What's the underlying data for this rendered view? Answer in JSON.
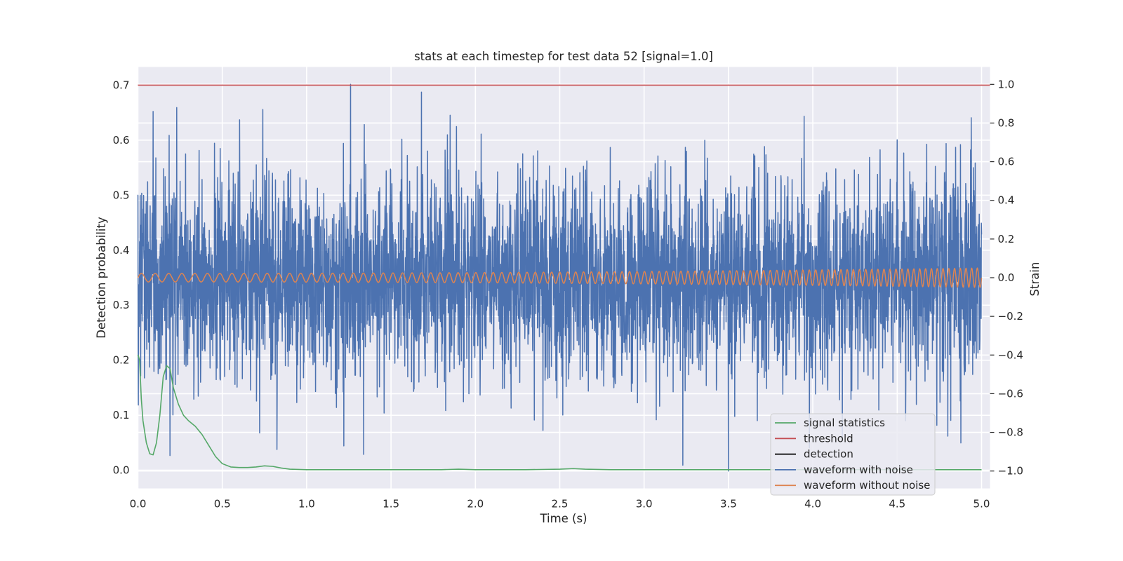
{
  "chart_data": {
    "type": "line",
    "title": "stats at each timestep for test data 52 [signal=1.0]",
    "xlabel": "Time (s)",
    "ylabel": "Detection probability",
    "ylabel_right": "Strain",
    "xlim": [
      0.0,
      5.05
    ],
    "ylim": [
      -0.033,
      0.733
    ],
    "ylim_right": [
      -1.09,
      1.09
    ],
    "x_ticks": [
      "0.0",
      "0.5",
      "1.0",
      "1.5",
      "2.0",
      "2.5",
      "3.0",
      "3.5",
      "4.0",
      "4.5",
      "5.0"
    ],
    "y_ticks": [
      "0.0",
      "0.1",
      "0.2",
      "0.3",
      "0.4",
      "0.5",
      "0.6",
      "0.7"
    ],
    "y_ticks_right": [
      "−1.0",
      "−0.8",
      "−0.6",
      "−0.4",
      "−0.2",
      "0.0",
      "0.2",
      "0.4",
      "0.6",
      "0.8",
      "1.0"
    ],
    "grid": true,
    "background": "#eaeaf2",
    "legend_position": "lower-right",
    "legend": [
      {
        "label": "signal statistics",
        "color": "#55a868"
      },
      {
        "label": "threshold",
        "color": "#c44e52"
      },
      {
        "label": "detection",
        "color": "#000000"
      },
      {
        "label": "waveform with noise",
        "color": "#4c72b0"
      },
      {
        "label": "waveform without noise",
        "color": "#dd8452"
      }
    ],
    "series": [
      {
        "name": "signal statistics",
        "axis": "left",
        "color": "#55a868",
        "x": [
          0.0,
          0.01,
          0.02,
          0.03,
          0.05,
          0.07,
          0.09,
          0.11,
          0.13,
          0.15,
          0.17,
          0.19,
          0.21,
          0.24,
          0.27,
          0.3,
          0.34,
          0.38,
          0.42,
          0.46,
          0.5,
          0.55,
          0.6,
          0.65,
          0.7,
          0.75,
          0.8,
          0.85,
          0.9,
          1.0,
          1.5,
          1.8,
          1.9,
          2.0,
          2.3,
          2.5,
          2.58,
          2.65,
          2.8,
          3.0,
          3.5,
          4.0,
          4.5,
          5.0
        ],
        "y": [
          0.21,
          0.2,
          0.13,
          0.09,
          0.05,
          0.03,
          0.028,
          0.05,
          0.1,
          0.17,
          0.19,
          0.185,
          0.15,
          0.12,
          0.1,
          0.09,
          0.08,
          0.065,
          0.045,
          0.025,
          0.012,
          0.006,
          0.005,
          0.005,
          0.006,
          0.008,
          0.007,
          0.004,
          0.002,
          0.001,
          0.001,
          0.001,
          0.002,
          0.001,
          0.001,
          0.002,
          0.003,
          0.002,
          0.001,
          0.001,
          0.001,
          0.001,
          0.001,
          0.001
        ]
      },
      {
        "name": "threshold",
        "axis": "left",
        "color": "#c44e52",
        "x": [
          -0.05,
          5.05
        ],
        "y": [
          0.7,
          0.7
        ]
      },
      {
        "name": "waveform with noise",
        "axis": "right",
        "color": "#4c72b0",
        "generated": "noise",
        "t_range": [
          0.0,
          5.0
        ],
        "n_samples": 4000,
        "sigma": 0.26,
        "peaks": [
          {
            "t": 0.09,
            "v": 0.86
          },
          {
            "t": 0.19,
            "v": -0.92
          },
          {
            "t": 0.23,
            "v": 0.88
          },
          {
            "t": 0.74,
            "v": 0.87
          },
          {
            "t": 1.22,
            "v": -0.87
          },
          {
            "t": 1.26,
            "v": 1.0
          },
          {
            "t": 1.68,
            "v": 0.96
          },
          {
            "t": 1.85,
            "v": 0.84
          },
          {
            "t": 3.5,
            "v": -1.0
          },
          {
            "t": 3.23,
            "v": -0.97
          },
          {
            "t": 2.4,
            "v": -0.79
          },
          {
            "t": 4.8,
            "v": -0.82
          },
          {
            "t": 4.55,
            "v": -0.74
          },
          {
            "t": 3.98,
            "v": -0.88
          }
        ]
      },
      {
        "name": "waveform without noise",
        "axis": "right",
        "color": "#dd8452",
        "generated": "chirp",
        "t_range": [
          0.0,
          5.0
        ],
        "amplitude_start": 0.022,
        "amplitude_end": 0.05,
        "freq_start": 12,
        "freq_end": 30
      }
    ]
  }
}
